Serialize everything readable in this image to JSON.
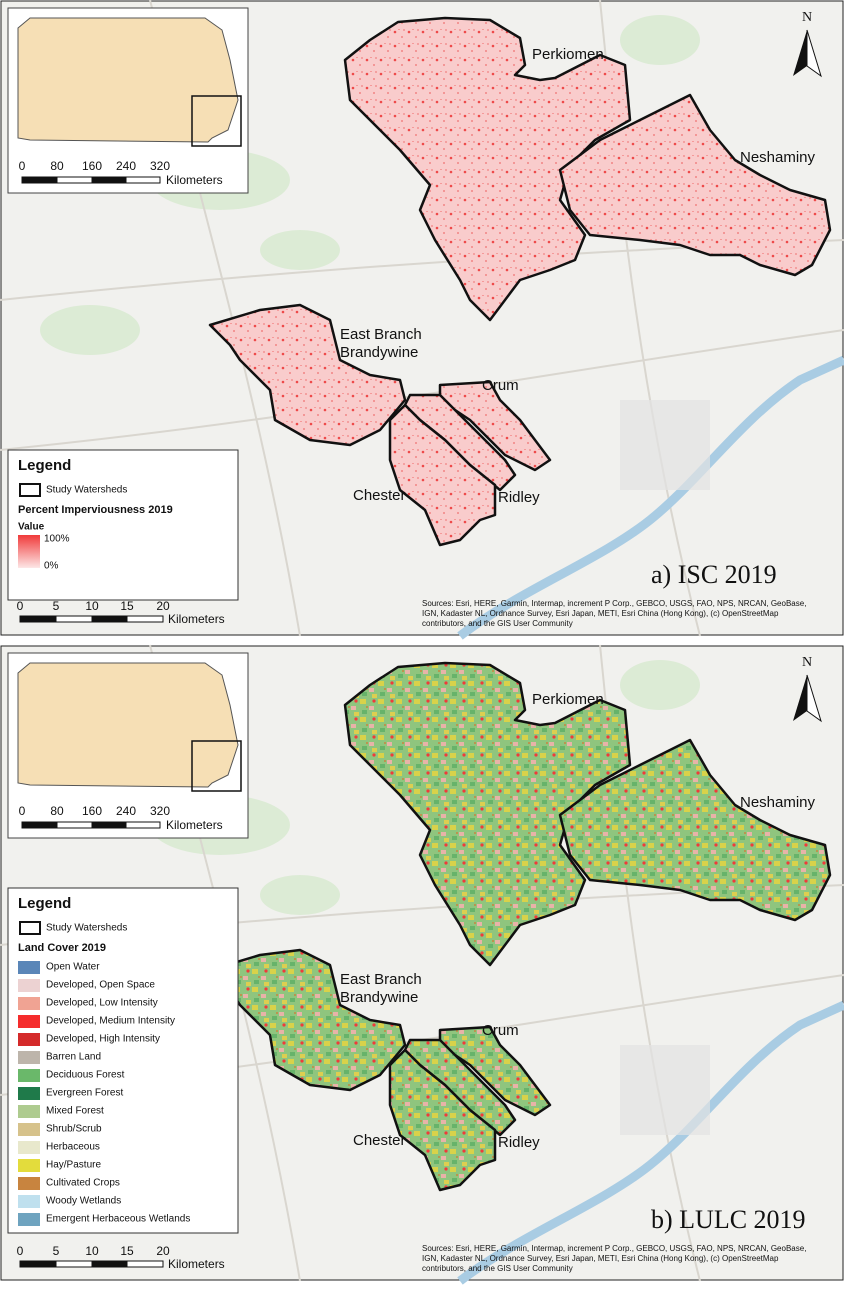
{
  "panels": [
    {
      "caption": "a) ISC 2019",
      "north": "N",
      "inset_scale": {
        "ticks": [
          "0",
          "80",
          "160",
          "240",
          "320"
        ],
        "unit": "Kilometers"
      },
      "watersheds": [
        "Perkiomen",
        "Neshaminy",
        "East Branch",
        "Brandywine",
        "Crum",
        "Chester",
        "Ridley"
      ],
      "legend": {
        "title": "Legend",
        "outline": "Study Watersheds",
        "layer": "Percent Imperviousness 2019",
        "value_title": "Value",
        "high": "100%",
        "low": "0%"
      },
      "scale": {
        "ticks": [
          "0",
          "5",
          "10",
          "15",
          "20"
        ],
        "unit": "Kilometers"
      },
      "sources": [
        "Sources: Esri, HERE, Garmin, Intermap, increment P Corp., GEBCO, USGS, FAO, NPS, NRCAN, GeoBase,",
        "IGN, Kadaster NL, Ordnance Survey, Esri Japan, METI, Esri China (Hong Kong), (c) OpenStreetMap",
        "contributors, and the GIS User Community"
      ]
    },
    {
      "caption": "b) LULC 2019",
      "north": "N",
      "inset_scale": {
        "ticks": [
          "0",
          "80",
          "160",
          "240",
          "320"
        ],
        "unit": "Kilometers"
      },
      "watersheds": [
        "Perkiomen",
        "Neshaminy",
        "East Branch",
        "Brandywine",
        "Crum",
        "Chester",
        "Ridley"
      ],
      "legend": {
        "title": "Legend",
        "outline": "Study Watersheds",
        "layer": "Land Cover 2019",
        "classes": [
          {
            "label": "Open Water",
            "color": "#5a86b8"
          },
          {
            "label": "Developed, Open Space",
            "color": "#ecd2d2"
          },
          {
            "label": "Developed, Low Intensity",
            "color": "#f0a393"
          },
          {
            "label": "Developed, Medium Intensity",
            "color": "#f52c2c"
          },
          {
            "label": "Developed, High Intensity",
            "color": "#d42a2a"
          },
          {
            "label": "Barren Land",
            "color": "#bdb5ab"
          },
          {
            "label": "Deciduous Forest",
            "color": "#6ab86a"
          },
          {
            "label": "Evergreen Forest",
            "color": "#1f7a4a"
          },
          {
            "label": "Mixed Forest",
            "color": "#aecb8f"
          },
          {
            "label": "Shrub/Scrub",
            "color": "#d6c28b"
          },
          {
            "label": "Herbaceous",
            "color": "#e8e8cc"
          },
          {
            "label": "Hay/Pasture",
            "color": "#e3dc3c"
          },
          {
            "label": "Cultivated Crops",
            "color": "#c8843f"
          },
          {
            "label": "Woody Wetlands",
            "color": "#bfe0ee"
          },
          {
            "label": "Emergent Herbaceous Wetlands",
            "color": "#6ea3bf"
          }
        ]
      },
      "scale": {
        "ticks": [
          "0",
          "5",
          "10",
          "15",
          "20"
        ],
        "unit": "Kilometers"
      },
      "sources": [
        "Sources: Esri, HERE, Garmin, Intermap, increment P Corp., GEBCO, USGS, FAO, NPS, NRCAN, GeoBase,",
        "IGN, Kadaster NL, Ordnance Survey, Esri Japan, METI, Esri China (Hong Kong), (c) OpenStreetMap",
        "contributors, and the GIS User Community"
      ]
    }
  ]
}
